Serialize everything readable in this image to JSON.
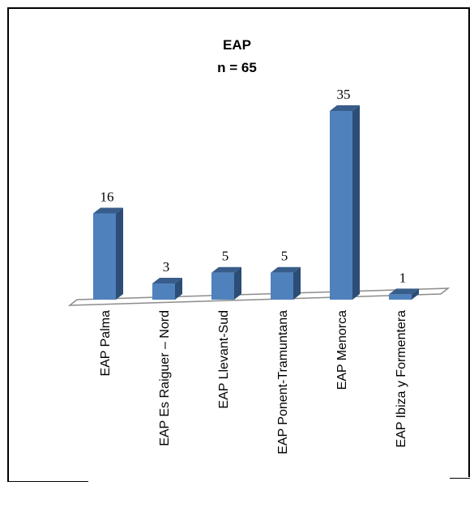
{
  "chart_data": {
    "type": "bar",
    "title": "EAP",
    "subtitle": "n = 65",
    "categories": [
      "EAP Palma",
      "EAP Es Raiguer – Nord",
      "EAP Llevant-Sud",
      "EAP Ponent-Tramuntana",
      "EAP Menorca",
      "EAP Ibiza y Formentera"
    ],
    "values": [
      16,
      3,
      5,
      5,
      35,
      1
    ],
    "data_labels": [
      "16",
      "3",
      "5",
      "5",
      "35",
      "1"
    ],
    "ylim": [
      0,
      35
    ],
    "grid": false,
    "legend": "none",
    "colors": {
      "bar_front": "#4F81BD",
      "bar_side": "#2C4D75",
      "bar_top": "#385D8A",
      "floor_stroke": "#8C8C8C"
    }
  }
}
